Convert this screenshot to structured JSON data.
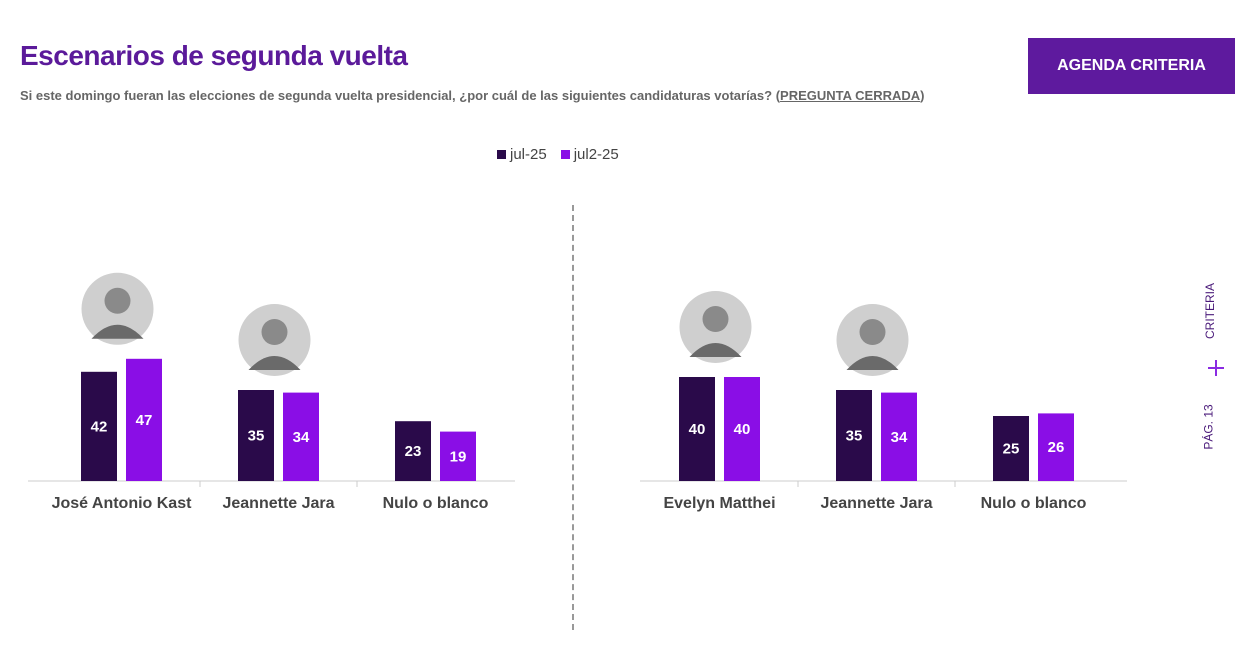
{
  "header": {
    "title": "Escenarios de segunda vuelta",
    "subtitle_main": "Si este domingo fueran las elecciones de segunda vuelta presidencial, ¿por cuál de las siguientes candidaturas votarías? (",
    "subtitle_closed": "PREGUNTA CERRADA",
    "subtitle_end": ")"
  },
  "agenda_button": {
    "label": "AGENDA CRITERIA"
  },
  "side": {
    "brand": "CRITERIA",
    "page": "PÁG. 13"
  },
  "colors": {
    "series1": "#2a0a4a",
    "series2": "#8a0ee6",
    "title": "#5b1a9a",
    "button": "#5e1a9e"
  },
  "chart_data": [
    {
      "type": "bar",
      "categories": [
        "José Antonio Kast",
        "Jeannette Jara",
        "Nulo o blanco"
      ],
      "series": [
        {
          "name": "jul-25",
          "values": [
            42,
            35,
            23
          ]
        },
        {
          "name": "jul2-25",
          "values": [
            47,
            34,
            19
          ]
        }
      ],
      "legend": "top-center",
      "grid": false
    },
    {
      "type": "bar",
      "categories": [
        "Evelyn Matthei",
        "Jeannette Jara",
        "Nulo o blanco"
      ],
      "series": [
        {
          "name": "jul-25",
          "values": [
            40,
            35,
            25
          ]
        },
        {
          "name": "jul2-25",
          "values": [
            40,
            34,
            26
          ]
        }
      ],
      "legend": "top-center",
      "grid": false
    }
  ]
}
